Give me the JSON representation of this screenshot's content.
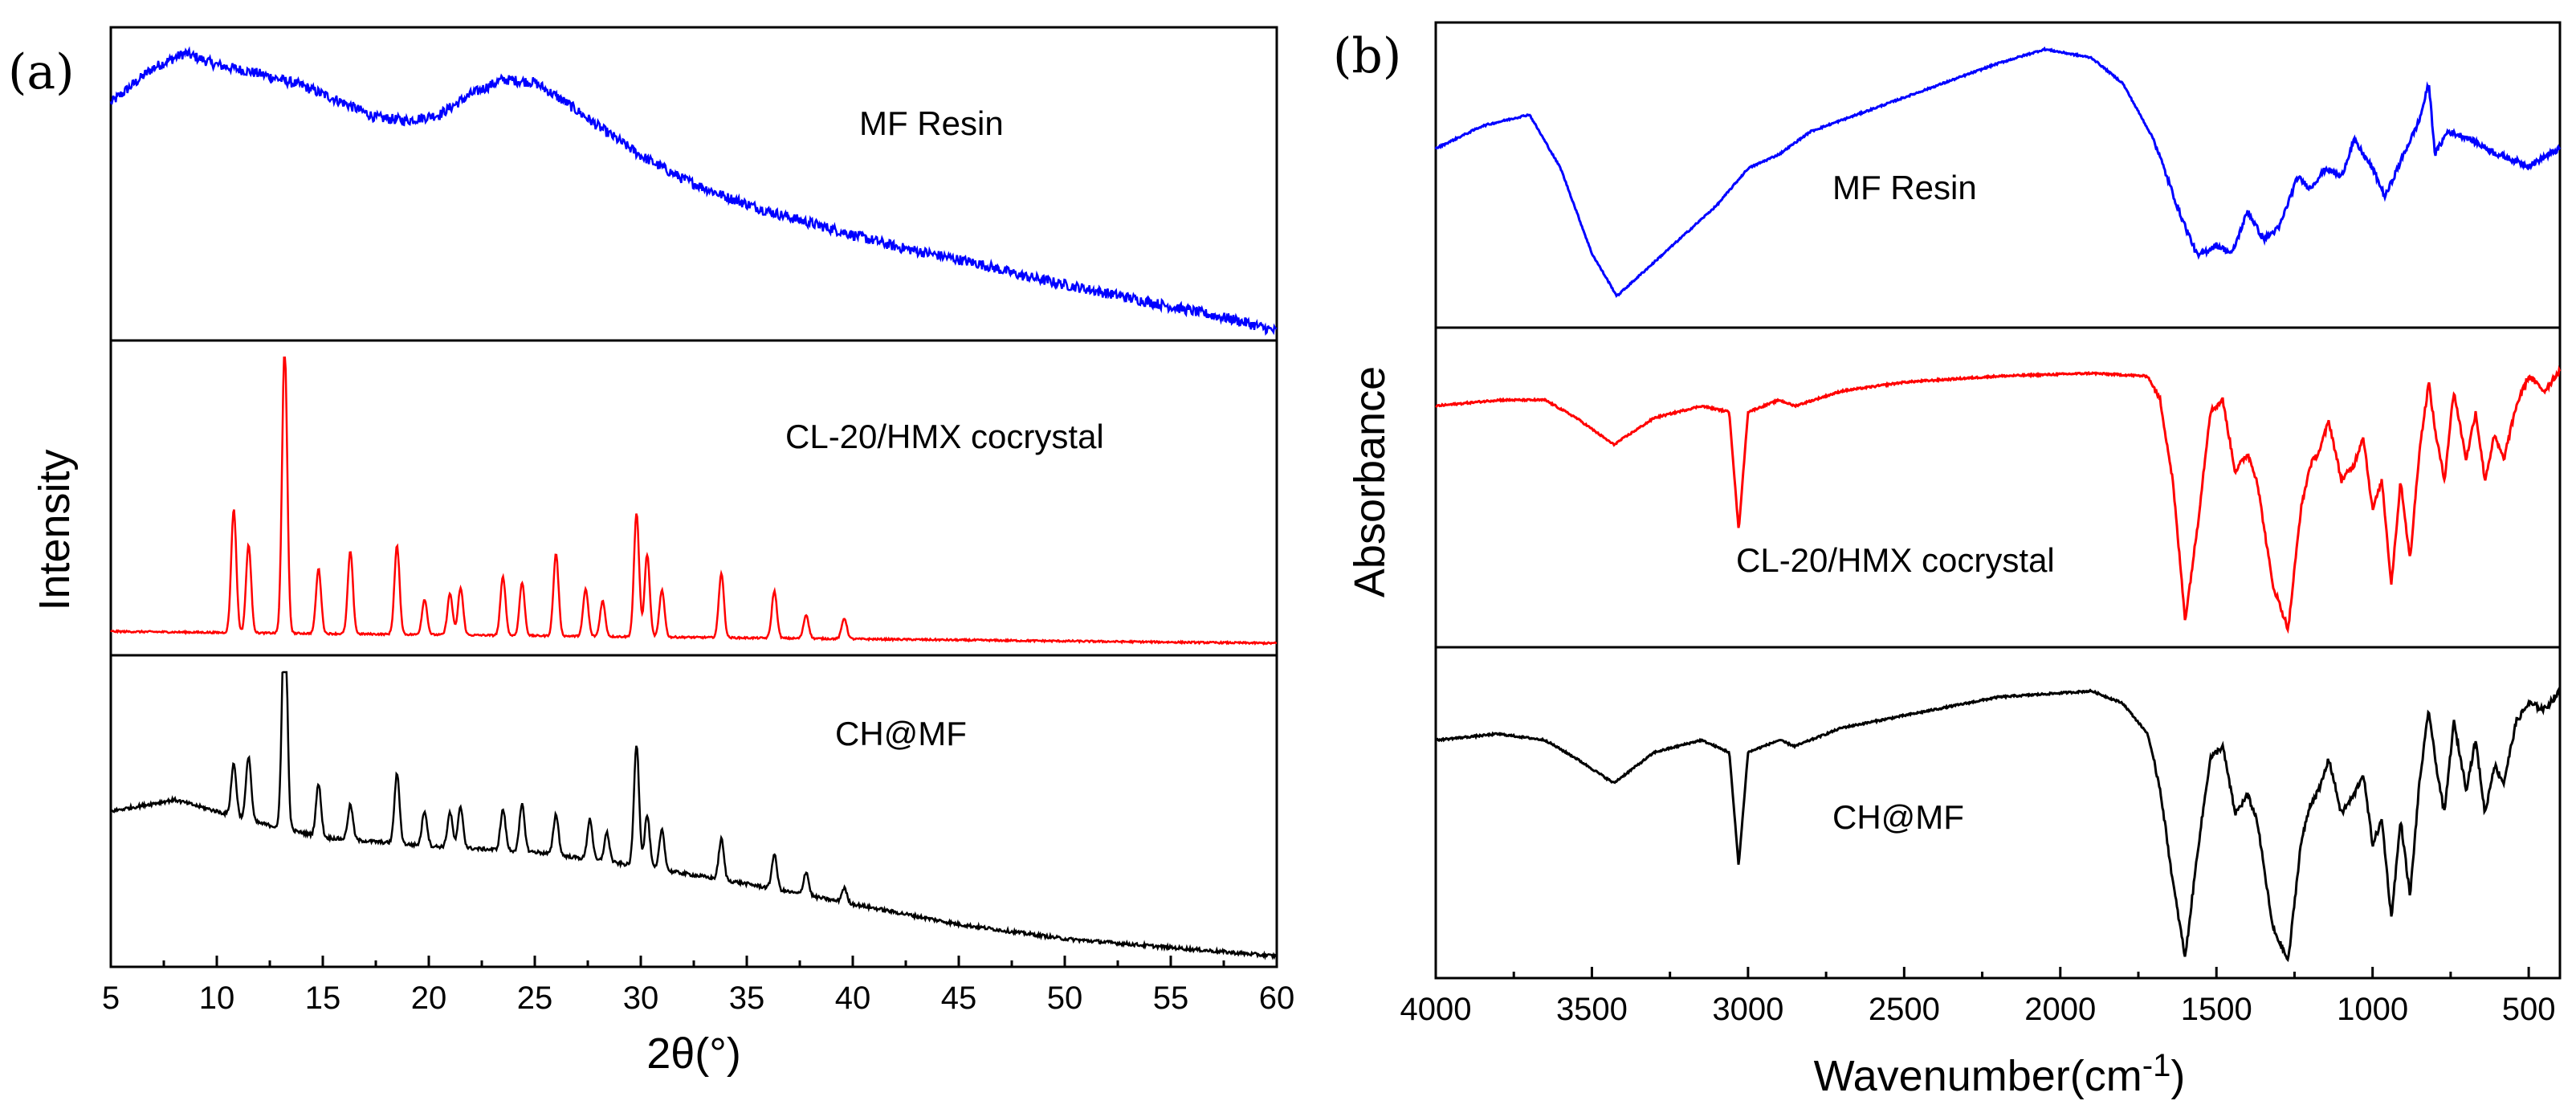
{
  "chart_data": [
    {
      "panel_label": "(a)",
      "type": "line",
      "title": "",
      "xlabel": "2θ(°)",
      "ylabel": "Intensity",
      "xlim": [
        5,
        60
      ],
      "xticks": [
        5,
        10,
        15,
        20,
        25,
        30,
        35,
        40,
        45,
        50,
        55,
        60
      ],
      "grid": false,
      "stacked": true,
      "series": [
        {
          "name": "MF Resin",
          "color": "#0000ff",
          "shape": "broad amorphous humps, noisy",
          "points": [
            [
              5,
              0.8
            ],
            [
              7,
              0.92
            ],
            [
              8.5,
              0.97
            ],
            [
              10,
              0.93
            ],
            [
              12,
              0.9
            ],
            [
              14,
              0.86
            ],
            [
              16,
              0.8
            ],
            [
              17.5,
              0.75
            ],
            [
              19,
              0.74
            ],
            [
              20.5,
              0.76
            ],
            [
              22,
              0.83
            ],
            [
              23.5,
              0.88
            ],
            [
              25,
              0.87
            ],
            [
              26.5,
              0.8
            ],
            [
              28,
              0.72
            ],
            [
              30,
              0.62
            ],
            [
              32,
              0.54
            ],
            [
              34,
              0.48
            ],
            [
              36,
              0.43
            ],
            [
              38,
              0.39
            ],
            [
              40,
              0.35
            ],
            [
              42,
              0.31
            ],
            [
              44,
              0.28
            ],
            [
              46,
              0.25
            ],
            [
              48,
              0.21
            ],
            [
              50,
              0.18
            ],
            [
              52,
              0.15
            ],
            [
              54,
              0.12
            ],
            [
              56,
              0.09
            ],
            [
              58,
              0.06
            ],
            [
              60,
              0.02
            ]
          ],
          "peaks": []
        },
        {
          "name": "CL-20/HMX cocrystal",
          "color": "#ff0000",
          "shape": "sharp crystalline peaks",
          "points": [
            [
              5,
              0.07
            ],
            [
              60,
              0.03
            ]
          ],
          "peaks": [
            [
              10.8,
              0.42
            ],
            [
              11.5,
              0.3
            ],
            [
              13.2,
              0.98
            ],
            [
              14.8,
              0.22
            ],
            [
              16.3,
              0.28
            ],
            [
              18.5,
              0.3
            ],
            [
              19.8,
              0.12
            ],
            [
              21.0,
              0.14
            ],
            [
              21.5,
              0.16
            ],
            [
              23.5,
              0.2
            ],
            [
              24.4,
              0.18
            ],
            [
              26.0,
              0.28
            ],
            [
              27.4,
              0.16
            ],
            [
              28.2,
              0.12
            ],
            [
              29.8,
              0.42
            ],
            [
              30.3,
              0.28
            ],
            [
              31.0,
              0.16
            ],
            [
              33.8,
              0.22
            ],
            [
              36.3,
              0.16
            ],
            [
              37.8,
              0.08
            ],
            [
              39.6,
              0.07
            ]
          ]
        },
        {
          "name": "CH@MF",
          "color": "#000000",
          "shape": "crystalline peaks on amorphous background",
          "points": [
            [
              5,
              0.52
            ],
            [
              8,
              0.56
            ],
            [
              10,
              0.52
            ],
            [
              12,
              0.48
            ],
            [
              15,
              0.43
            ],
            [
              20,
              0.4
            ],
            [
              25,
              0.38
            ],
            [
              30,
              0.33
            ],
            [
              35,
              0.27
            ],
            [
              40,
              0.2
            ],
            [
              45,
              0.13
            ],
            [
              50,
              0.08
            ],
            [
              55,
              0.05
            ],
            [
              60,
              0.02
            ]
          ],
          "peaks": [
            [
              10.8,
              0.18
            ],
            [
              11.5,
              0.22
            ],
            [
              13.2,
              0.8
            ],
            [
              14.8,
              0.18
            ],
            [
              16.3,
              0.12
            ],
            [
              18.5,
              0.24
            ],
            [
              19.8,
              0.12
            ],
            [
              21.0,
              0.12
            ],
            [
              21.5,
              0.14
            ],
            [
              23.5,
              0.14
            ],
            [
              24.4,
              0.16
            ],
            [
              26.0,
              0.14
            ],
            [
              27.6,
              0.14
            ],
            [
              28.4,
              0.1
            ],
            [
              29.8,
              0.42
            ],
            [
              30.3,
              0.18
            ],
            [
              31.0,
              0.14
            ],
            [
              33.8,
              0.14
            ],
            [
              36.3,
              0.12
            ],
            [
              37.8,
              0.08
            ],
            [
              39.6,
              0.05
            ]
          ]
        }
      ]
    },
    {
      "panel_label": "(b)",
      "type": "line",
      "title": "",
      "xlabel": "Wavenumber(cm",
      "xlabel_sup": "-1",
      "xlabel_end": ")",
      "ylabel": "Absorbance",
      "xlim": [
        4000,
        400
      ],
      "xticks": [
        4000,
        3500,
        3000,
        2500,
        2000,
        1500,
        1000,
        500
      ],
      "grid": false,
      "stacked": true,
      "series": [
        {
          "name": "MF Resin",
          "color": "#0000ff",
          "points": [
            [
              4000,
              0.62
            ],
            [
              3850,
              0.7
            ],
            [
              3700,
              0.74
            ],
            [
              3600,
              0.55
            ],
            [
              3500,
              0.25
            ],
            [
              3420,
              0.1
            ],
            [
              3300,
              0.22
            ],
            [
              3200,
              0.32
            ],
            [
              3100,
              0.42
            ],
            [
              3000,
              0.55
            ],
            [
              2900,
              0.6
            ],
            [
              2800,
              0.68
            ],
            [
              2500,
              0.8
            ],
            [
              2200,
              0.92
            ],
            [
              2050,
              0.97
            ],
            [
              1900,
              0.94
            ],
            [
              1800,
              0.85
            ],
            [
              1700,
              0.65
            ],
            [
              1620,
              0.4
            ],
            [
              1560,
              0.24
            ],
            [
              1500,
              0.28
            ],
            [
              1450,
              0.25
            ],
            [
              1400,
              0.4
            ],
            [
              1350,
              0.3
            ],
            [
              1300,
              0.34
            ],
            [
              1240,
              0.52
            ],
            [
              1200,
              0.48
            ],
            [
              1150,
              0.55
            ],
            [
              1100,
              0.52
            ],
            [
              1060,
              0.65
            ],
            [
              1000,
              0.55
            ],
            [
              960,
              0.45
            ],
            [
              900,
              0.6
            ],
            [
              850,
              0.72
            ],
            [
              820,
              0.85
            ],
            [
              800,
              0.6
            ],
            [
              760,
              0.68
            ],
            [
              700,
              0.66
            ],
            [
              600,
              0.6
            ],
            [
              500,
              0.56
            ],
            [
              400,
              0.62
            ]
          ]
        },
        {
          "name": "CL-20/HMX cocrystal",
          "color": "#ff0000",
          "points": [
            [
              4000,
              0.8
            ],
            [
              3800,
              0.82
            ],
            [
              3650,
              0.82
            ],
            [
              3550,
              0.76
            ],
            [
              3430,
              0.67
            ],
            [
              3300,
              0.76
            ],
            [
              3150,
              0.8
            ],
            [
              3060,
              0.78
            ],
            [
              3030,
              0.38
            ],
            [
              3000,
              0.78
            ],
            [
              2900,
              0.82
            ],
            [
              2850,
              0.8
            ],
            [
              2700,
              0.85
            ],
            [
              2500,
              0.88
            ],
            [
              2200,
              0.9
            ],
            [
              1900,
              0.91
            ],
            [
              1720,
              0.9
            ],
            [
              1680,
              0.82
            ],
            [
              1640,
              0.55
            ],
            [
              1600,
              0.08
            ],
            [
              1560,
              0.4
            ],
            [
              1520,
              0.78
            ],
            [
              1480,
              0.82
            ],
            [
              1440,
              0.58
            ],
            [
              1400,
              0.64
            ],
            [
              1370,
              0.55
            ],
            [
              1320,
              0.2
            ],
            [
              1270,
              0.05
            ],
            [
              1230,
              0.45
            ],
            [
              1200,
              0.6
            ],
            [
              1170,
              0.65
            ],
            [
              1140,
              0.75
            ],
            [
              1100,
              0.55
            ],
            [
              1060,
              0.6
            ],
            [
              1030,
              0.7
            ],
            [
              1000,
              0.45
            ],
            [
              970,
              0.55
            ],
            [
              940,
              0.2
            ],
            [
              910,
              0.55
            ],
            [
              880,
              0.28
            ],
            [
              850,
              0.65
            ],
            [
              820,
              0.88
            ],
            [
              800,
              0.72
            ],
            [
              770,
              0.55
            ],
            [
              740,
              0.85
            ],
            [
              700,
              0.62
            ],
            [
              670,
              0.78
            ],
            [
              640,
              0.55
            ],
            [
              610,
              0.7
            ],
            [
              580,
              0.62
            ],
            [
              540,
              0.8
            ],
            [
              500,
              0.9
            ],
            [
              450,
              0.85
            ],
            [
              400,
              0.92
            ]
          ]
        },
        {
          "name": "CH@MF",
          "color": "#000000",
          "points": [
            [
              4000,
              0.76
            ],
            [
              3800,
              0.78
            ],
            [
              3650,
              0.76
            ],
            [
              3550,
              0.7
            ],
            [
              3430,
              0.62
            ],
            [
              3300,
              0.72
            ],
            [
              3150,
              0.76
            ],
            [
              3060,
              0.72
            ],
            [
              3030,
              0.35
            ],
            [
              3000,
              0.72
            ],
            [
              2900,
              0.76
            ],
            [
              2850,
              0.74
            ],
            [
              2700,
              0.8
            ],
            [
              2500,
              0.84
            ],
            [
              2200,
              0.9
            ],
            [
              1900,
              0.92
            ],
            [
              1800,
              0.88
            ],
            [
              1720,
              0.78
            ],
            [
              1680,
              0.6
            ],
            [
              1640,
              0.3
            ],
            [
              1600,
              0.05
            ],
            [
              1560,
              0.4
            ],
            [
              1520,
              0.7
            ],
            [
              1480,
              0.74
            ],
            [
              1440,
              0.52
            ],
            [
              1400,
              0.58
            ],
            [
              1370,
              0.5
            ],
            [
              1320,
              0.15
            ],
            [
              1270,
              0.04
            ],
            [
              1230,
              0.42
            ],
            [
              1200,
              0.55
            ],
            [
              1170,
              0.6
            ],
            [
              1140,
              0.7
            ],
            [
              1100,
              0.52
            ],
            [
              1060,
              0.58
            ],
            [
              1030,
              0.65
            ],
            [
              1000,
              0.42
            ],
            [
              970,
              0.5
            ],
            [
              940,
              0.18
            ],
            [
              910,
              0.5
            ],
            [
              880,
              0.25
            ],
            [
              850,
              0.62
            ],
            [
              820,
              0.86
            ],
            [
              800,
              0.7
            ],
            [
              770,
              0.52
            ],
            [
              740,
              0.82
            ],
            [
              700,
              0.6
            ],
            [
              670,
              0.76
            ],
            [
              640,
              0.52
            ],
            [
              610,
              0.68
            ],
            [
              580,
              0.62
            ],
            [
              540,
              0.82
            ],
            [
              500,
              0.88
            ],
            [
              450,
              0.86
            ],
            [
              400,
              0.92
            ]
          ]
        }
      ]
    }
  ]
}
